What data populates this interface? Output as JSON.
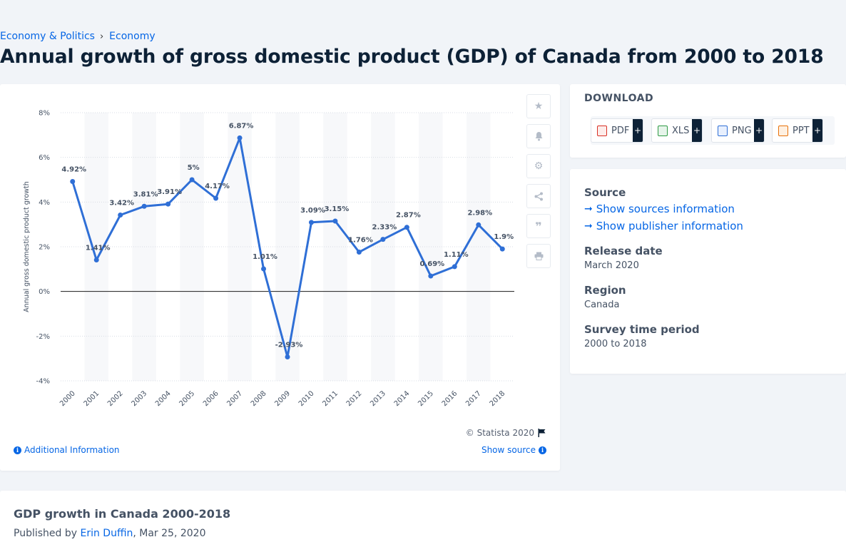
{
  "breadcrumb": {
    "level1": "Economy & Politics",
    "level2": "Economy"
  },
  "page_title": "Annual growth of gross domestic product (GDP) of Canada from 2000 to 2018",
  "chart_data": {
    "type": "line",
    "x": [
      "2000",
      "2001",
      "2002",
      "2003",
      "2004",
      "2005",
      "2006",
      "2007",
      "2008",
      "2009",
      "2010",
      "2011",
      "2012",
      "2013",
      "2014",
      "2015",
      "2016",
      "2017",
      "2018"
    ],
    "values": [
      4.92,
      1.41,
      3.42,
      3.81,
      3.91,
      5,
      4.17,
      6.87,
      1.01,
      -2.93,
      3.09,
      3.15,
      1.76,
      2.33,
      2.87,
      0.69,
      1.11,
      2.98,
      1.9
    ],
    "data_labels": [
      "4.92%",
      "1.41%",
      "3.42%",
      "3.81%",
      "3.91%",
      "5%",
      "4.17%",
      "6.87%",
      "1.01%",
      "-2.93%",
      "3.09%",
      "3.15%",
      "1.76%",
      "2.33%",
      "2.87%",
      "0.69%",
      "1.11%",
      "2.98%",
      "1.9%"
    ],
    "ylabel": "Annual gross domestic product growth",
    "xlabel": "",
    "ylim": [
      -4,
      8
    ],
    "yticks": [
      -4,
      -2,
      0,
      2,
      4,
      6,
      8
    ],
    "ytick_labels": [
      "-4%",
      "-2%",
      "0%",
      "2%",
      "4%",
      "6%",
      "8%"
    ],
    "grid": true,
    "line_color": "#2f6fd6"
  },
  "chart_footer": {
    "copyright": "© Statista 2020",
    "additional_info": "Additional Information",
    "show_source": "Show source"
  },
  "download": {
    "title": "DOWNLOAD",
    "buttons": [
      {
        "label": "PDF",
        "icon": "pdf-file-icon",
        "color": "#d93025"
      },
      {
        "label": "XLS",
        "icon": "xls-file-icon",
        "color": "#2e9b45"
      },
      {
        "label": "PNG",
        "icon": "png-file-icon",
        "color": "#2f6fd6"
      },
      {
        "label": "PPT",
        "icon": "ppt-file-icon",
        "color": "#e8710a"
      }
    ],
    "plus": "+"
  },
  "info": {
    "source_label": "Source",
    "show_sources": "Show sources information",
    "show_publisher": "Show publisher information",
    "release_label": "Release date",
    "release_value": "March 2020",
    "region_label": "Region",
    "region_value": "Canada",
    "period_label": "Survey time period",
    "period_value": "2000 to 2018"
  },
  "bottom": {
    "title": "GDP growth in Canada 2000-2018",
    "published_by": "Published by",
    "author": "Erin Duffin",
    "date": ", Mar 25, 2020"
  }
}
